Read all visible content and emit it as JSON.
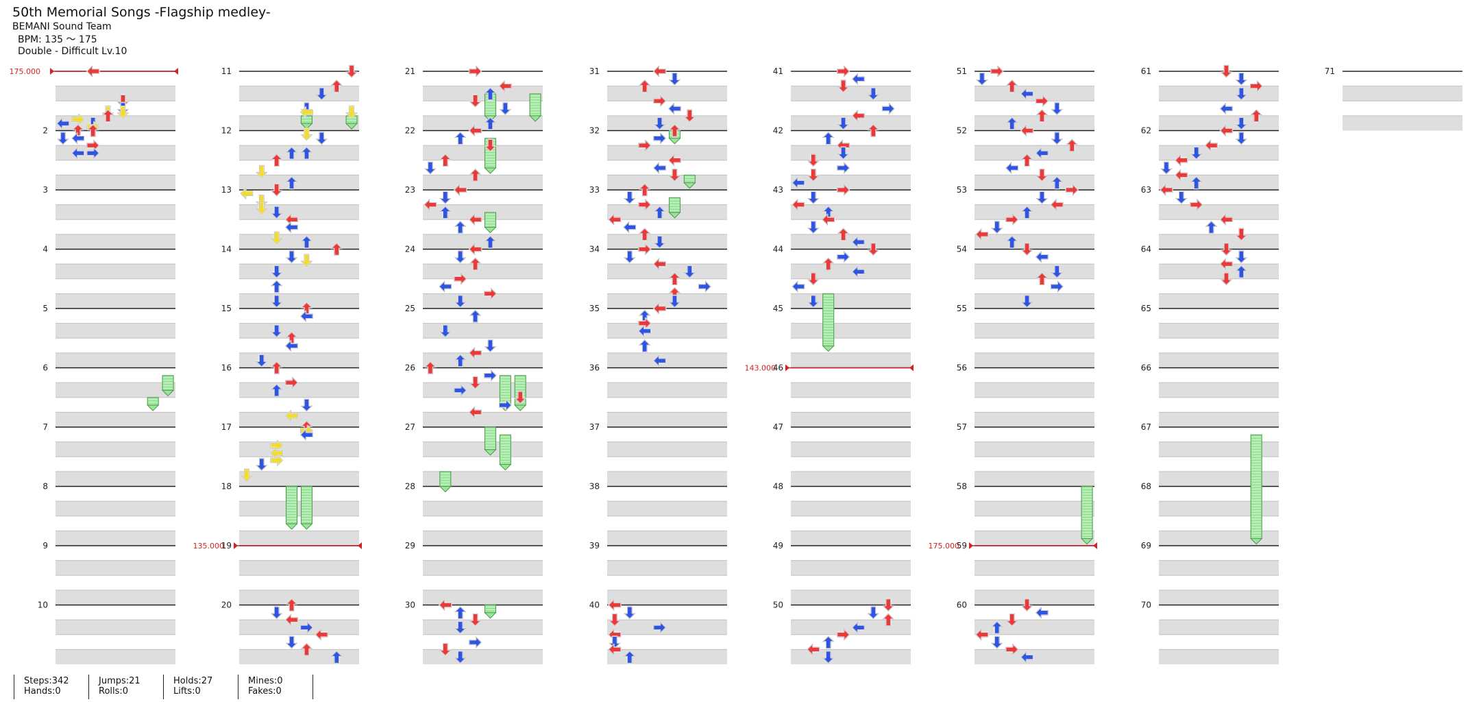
{
  "song": {
    "title": "50th Memorial Songs -Flagship medley-",
    "artist": "BEMANI Sound Team",
    "bpm": "BPM: 135 ～ 175",
    "difficulty": "Double - Difficult Lv.10"
  },
  "measures": [
    "2",
    "3",
    "4",
    "5",
    "6",
    "7",
    "8",
    "9",
    "10",
    "11",
    "12",
    "13",
    "14",
    "15",
    "16",
    "17",
    "18",
    "19",
    "20",
    "21",
    "22",
    "23",
    "24",
    "25",
    "26",
    "27",
    "28",
    "29",
    "30",
    "31",
    "32",
    "33",
    "34",
    "35",
    "36",
    "37",
    "38",
    "39",
    "40",
    "41",
    "42",
    "43",
    "44",
    "45",
    "46",
    "47",
    "48",
    "49",
    "50",
    "51",
    "52",
    "53",
    "54",
    "55",
    "56",
    "57",
    "58",
    "59",
    "60",
    "61",
    "62",
    "63",
    "64",
    "65",
    "66",
    "67",
    "68",
    "69",
    "70",
    "71"
  ],
  "bpm_changes": [
    {
      "measure": 1,
      "label": "175.000"
    },
    {
      "measure": 19,
      "label": "135.000"
    },
    {
      "measure": 46,
      "label": "143.000"
    },
    {
      "measure": 59,
      "label": "175.000"
    }
  ],
  "colors": {
    "quarter": "#e83a3a",
    "eighth": "#2f55e0",
    "sixteenth": "#f2dc32",
    "hold": "#9ae59a",
    "bpm_line": "#d32222",
    "beat_band": "#dedede"
  },
  "notes": [
    [
      1.5,
      4,
      "d"
    ],
    [
      1.63,
      4,
      "d"
    ],
    [
      1.69,
      3,
      "d"
    ],
    [
      1.69,
      4,
      "d"
    ],
    [
      1.75,
      3,
      "u"
    ],
    [
      1.88,
      2,
      "d"
    ],
    [
      1.88,
      0,
      "l"
    ],
    [
      1.94,
      2,
      "r"
    ],
    [
      2.0,
      1,
      "u"
    ],
    [
      2.0,
      2,
      "u"
    ],
    [
      2.13,
      0,
      "d"
    ],
    [
      2.13,
      1,
      "l"
    ],
    [
      2.25,
      2,
      "r"
    ],
    [
      2.38,
      1,
      "l"
    ],
    [
      2.38,
      2,
      "r"
    ],
    [
      1.81,
      1,
      "r"
    ],
    [
      1.0,
      2,
      "l"
    ],
    [
      1.0,
      2,
      "l"
    ],
    [
      11.0,
      7,
      "d"
    ],
    [
      11.25,
      6,
      "u"
    ],
    [
      11.38,
      5,
      "d"
    ],
    [
      11.63,
      4,
      "d"
    ],
    [
      11.69,
      4,
      "l"
    ],
    [
      11.69,
      7,
      "d"
    ],
    [
      12.06,
      4,
      "d"
    ],
    [
      12.13,
      5,
      "d"
    ],
    [
      12.38,
      3,
      "u"
    ],
    [
      12.38,
      4,
      "u"
    ],
    [
      12.5,
      2,
      "u"
    ],
    [
      12.69,
      1,
      "d"
    ],
    [
      12.88,
      3,
      "u"
    ],
    [
      13.0,
      2,
      "d"
    ],
    [
      13.06,
      0,
      "l"
    ],
    [
      13.19,
      1,
      "d"
    ],
    [
      13.31,
      1,
      "d"
    ],
    [
      13.38,
      2,
      "d"
    ],
    [
      13.5,
      3,
      "l"
    ],
    [
      13.63,
      3,
      "l"
    ],
    [
      13.81,
      2,
      "d"
    ],
    [
      13.88,
      4,
      "u"
    ],
    [
      14.0,
      6,
      "u"
    ],
    [
      14.13,
      3,
      "d"
    ],
    [
      14.19,
      4,
      "d"
    ],
    [
      14.38,
      2,
      "d"
    ],
    [
      14.63,
      2,
      "u"
    ],
    [
      14.88,
      2,
      "d"
    ],
    [
      15.0,
      4,
      "u"
    ],
    [
      15.13,
      4,
      "l"
    ],
    [
      15.38,
      2,
      "d"
    ],
    [
      15.5,
      3,
      "u"
    ],
    [
      15.63,
      3,
      "l"
    ],
    [
      15.88,
      1,
      "d"
    ],
    [
      16.0,
      2,
      "u"
    ],
    [
      16.25,
      3,
      "r"
    ],
    [
      16.38,
      2,
      "u"
    ],
    [
      16.63,
      4,
      "d"
    ],
    [
      16.81,
      3,
      "l"
    ],
    [
      17.0,
      4,
      "u"
    ],
    [
      17.06,
      4,
      "r"
    ],
    [
      17.13,
      4,
      "l"
    ],
    [
      17.31,
      2,
      "r"
    ],
    [
      17.44,
      2,
      "l"
    ],
    [
      17.56,
      2,
      "r"
    ],
    [
      17.63,
      1,
      "d"
    ],
    [
      17.81,
      0,
      "d"
    ],
    [
      20.0,
      3,
      "u"
    ],
    [
      20.13,
      2,
      "d"
    ],
    [
      20.25,
      3,
      "l"
    ],
    [
      20.38,
      4,
      "r"
    ],
    [
      20.5,
      5,
      "l"
    ],
    [
      20.63,
      3,
      "d"
    ],
    [
      20.75,
      4,
      "u"
    ],
    [
      20.88,
      6,
      "u"
    ],
    [
      21.0,
      3,
      "r"
    ],
    [
      21.25,
      5,
      "l"
    ],
    [
      21.38,
      4,
      "u"
    ],
    [
      21.5,
      3,
      "d"
    ],
    [
      21.63,
      5,
      "d"
    ],
    [
      21.88,
      4,
      "u"
    ],
    [
      22.0,
      3,
      "l"
    ],
    [
      22.13,
      2,
      "u"
    ],
    [
      22.25,
      4,
      "d"
    ],
    [
      22.5,
      1,
      "u"
    ],
    [
      22.63,
      0,
      "d"
    ],
    [
      22.75,
      3,
      "u"
    ],
    [
      23.0,
      2,
      "l"
    ],
    [
      23.13,
      1,
      "d"
    ],
    [
      23.25,
      0,
      "l"
    ],
    [
      23.38,
      1,
      "u"
    ],
    [
      23.5,
      3,
      "l"
    ],
    [
      23.63,
      2,
      "u"
    ],
    [
      23.88,
      4,
      "u"
    ],
    [
      24.0,
      3,
      "l"
    ],
    [
      24.13,
      2,
      "d"
    ],
    [
      24.25,
      3,
      "u"
    ],
    [
      24.5,
      2,
      "r"
    ],
    [
      24.63,
      1,
      "l"
    ],
    [
      24.75,
      4,
      "r"
    ],
    [
      24.88,
      2,
      "d"
    ],
    [
      25.13,
      3,
      "u"
    ],
    [
      25.38,
      1,
      "d"
    ],
    [
      25.63,
      4,
      "d"
    ],
    [
      25.75,
      3,
      "l"
    ],
    [
      25.88,
      2,
      "u"
    ],
    [
      26.0,
      0,
      "u"
    ],
    [
      26.13,
      4,
      "r"
    ],
    [
      26.25,
      3,
      "d"
    ],
    [
      26.38,
      2,
      "r"
    ],
    [
      26.5,
      6,
      "d"
    ],
    [
      26.63,
      5,
      "r"
    ],
    [
      26.75,
      3,
      "l"
    ],
    [
      30.0,
      1,
      "l"
    ],
    [
      30.13,
      2,
      "u"
    ],
    [
      30.25,
      3,
      "d"
    ],
    [
      30.38,
      2,
      "d"
    ],
    [
      30.63,
      3,
      "r"
    ],
    [
      30.75,
      1,
      "d"
    ],
    [
      30.88,
      2,
      "d"
    ],
    [
      31.0,
      3,
      "l"
    ],
    [
      31.13,
      4,
      "d"
    ],
    [
      31.25,
      2,
      "u"
    ],
    [
      31.5,
      3,
      "r"
    ],
    [
      31.63,
      4,
      "l"
    ],
    [
      31.75,
      5,
      "d"
    ],
    [
      31.88,
      3,
      "d"
    ],
    [
      32.0,
      4,
      "u"
    ],
    [
      32.13,
      3,
      "r"
    ],
    [
      32.25,
      2,
      "r"
    ],
    [
      32.5,
      4,
      "l"
    ],
    [
      32.63,
      3,
      "l"
    ],
    [
      32.75,
      4,
      "d"
    ],
    [
      33.0,
      2,
      "u"
    ],
    [
      33.13,
      1,
      "d"
    ],
    [
      33.25,
      2,
      "r"
    ],
    [
      33.38,
      3,
      "u"
    ],
    [
      33.5,
      0,
      "l"
    ],
    [
      33.63,
      1,
      "l"
    ],
    [
      33.75,
      2,
      "u"
    ],
    [
      33.88,
      3,
      "d"
    ],
    [
      34.0,
      2,
      "r"
    ],
    [
      34.13,
      1,
      "d"
    ],
    [
      34.25,
      3,
      "l"
    ],
    [
      34.38,
      5,
      "d"
    ],
    [
      34.5,
      4,
      "u"
    ],
    [
      34.63,
      6,
      "r"
    ],
    [
      34.75,
      4,
      "u"
    ],
    [
      34.88,
      4,
      "d"
    ],
    [
      35.0,
      3,
      "l"
    ],
    [
      35.13,
      2,
      "u"
    ],
    [
      35.25,
      2,
      "r"
    ],
    [
      35.38,
      2,
      "l"
    ],
    [
      35.63,
      2,
      "u"
    ],
    [
      35.88,
      3,
      "l"
    ],
    [
      40.0,
      0,
      "l"
    ],
    [
      40.13,
      1,
      "d"
    ],
    [
      40.25,
      0,
      "d"
    ],
    [
      40.38,
      3,
      "r"
    ],
    [
      40.5,
      0,
      "l"
    ],
    [
      40.63,
      0,
      "d"
    ],
    [
      40.75,
      0,
      "l"
    ],
    [
      40.88,
      1,
      "u"
    ],
    [
      41.0,
      3,
      "r"
    ],
    [
      41.13,
      4,
      "l"
    ],
    [
      41.25,
      3,
      "d"
    ],
    [
      41.38,
      5,
      "d"
    ],
    [
      41.63,
      6,
      "r"
    ],
    [
      41.75,
      4,
      "l"
    ],
    [
      41.88,
      3,
      "d"
    ],
    [
      42.0,
      5,
      "u"
    ],
    [
      42.13,
      2,
      "u"
    ],
    [
      42.25,
      3,
      "l"
    ],
    [
      42.38,
      3,
      "d"
    ],
    [
      42.5,
      1,
      "d"
    ],
    [
      42.63,
      3,
      "r"
    ],
    [
      42.75,
      1,
      "d"
    ],
    [
      42.88,
      0,
      "l"
    ],
    [
      43.0,
      3,
      "r"
    ],
    [
      43.13,
      1,
      "d"
    ],
    [
      43.25,
      0,
      "l"
    ],
    [
      43.38,
      2,
      "u"
    ],
    [
      43.5,
      2,
      "l"
    ],
    [
      43.63,
      1,
      "d"
    ],
    [
      43.75,
      3,
      "u"
    ],
    [
      43.88,
      4,
      "l"
    ],
    [
      44.0,
      5,
      "d"
    ],
    [
      44.13,
      3,
      "r"
    ],
    [
      44.25,
      2,
      "u"
    ],
    [
      44.38,
      4,
      "l"
    ],
    [
      44.5,
      1,
      "d"
    ],
    [
      44.63,
      0,
      "l"
    ],
    [
      44.88,
      1,
      "d"
    ],
    [
      50.0,
      6,
      "d"
    ],
    [
      50.13,
      5,
      "d"
    ],
    [
      50.25,
      6,
      "u"
    ],
    [
      50.38,
      4,
      "l"
    ],
    [
      50.5,
      3,
      "r"
    ],
    [
      50.63,
      2,
      "u"
    ],
    [
      50.75,
      1,
      "l"
    ],
    [
      50.88,
      2,
      "d"
    ],
    [
      51.0,
      1,
      "r"
    ],
    [
      51.13,
      0,
      "d"
    ],
    [
      51.25,
      2,
      "u"
    ],
    [
      51.38,
      3,
      "l"
    ],
    [
      51.5,
      4,
      "r"
    ],
    [
      51.63,
      5,
      "d"
    ],
    [
      51.75,
      4,
      "u"
    ],
    [
      51.88,
      2,
      "u"
    ],
    [
      52.0,
      3,
      "l"
    ],
    [
      52.13,
      5,
      "d"
    ],
    [
      52.25,
      6,
      "u"
    ],
    [
      52.38,
      4,
      "l"
    ],
    [
      52.5,
      3,
      "u"
    ],
    [
      52.63,
      2,
      "l"
    ],
    [
      52.75,
      4,
      "d"
    ],
    [
      52.88,
      5,
      "u"
    ],
    [
      53.0,
      6,
      "r"
    ],
    [
      53.13,
      4,
      "d"
    ],
    [
      53.25,
      5,
      "l"
    ],
    [
      53.38,
      3,
      "u"
    ],
    [
      53.5,
      2,
      "r"
    ],
    [
      53.63,
      1,
      "d"
    ],
    [
      53.75,
      0,
      "l"
    ],
    [
      53.88,
      2,
      "u"
    ],
    [
      54.0,
      3,
      "d"
    ],
    [
      54.13,
      4,
      "l"
    ],
    [
      54.38,
      5,
      "d"
    ],
    [
      54.5,
      4,
      "u"
    ],
    [
      54.63,
      5,
      "r"
    ],
    [
      54.88,
      3,
      "d"
    ],
    [
      60.0,
      3,
      "d"
    ],
    [
      60.13,
      4,
      "l"
    ],
    [
      60.25,
      2,
      "d"
    ],
    [
      60.38,
      1,
      "u"
    ],
    [
      60.5,
      0,
      "l"
    ],
    [
      60.63,
      1,
      "d"
    ],
    [
      60.75,
      2,
      "r"
    ],
    [
      60.88,
      3,
      "l"
    ],
    [
      61.0,
      4,
      "d"
    ],
    [
      61.13,
      5,
      "d"
    ],
    [
      61.25,
      6,
      "r"
    ],
    [
      61.38,
      5,
      "d"
    ],
    [
      61.63,
      4,
      "l"
    ],
    [
      61.75,
      6,
      "u"
    ],
    [
      61.88,
      5,
      "d"
    ],
    [
      62.0,
      4,
      "l"
    ],
    [
      62.13,
      5,
      "d"
    ],
    [
      62.25,
      3,
      "l"
    ],
    [
      62.38,
      2,
      "d"
    ],
    [
      62.5,
      1,
      "l"
    ],
    [
      62.63,
      0,
      "d"
    ],
    [
      62.75,
      1,
      "l"
    ],
    [
      62.88,
      2,
      "u"
    ],
    [
      63.0,
      0,
      "l"
    ],
    [
      63.13,
      1,
      "d"
    ],
    [
      63.25,
      2,
      "r"
    ],
    [
      63.5,
      4,
      "l"
    ],
    [
      63.63,
      3,
      "u"
    ],
    [
      63.75,
      5,
      "d"
    ],
    [
      64.0,
      4,
      "d"
    ],
    [
      64.13,
      5,
      "d"
    ],
    [
      64.25,
      4,
      "l"
    ],
    [
      64.38,
      5,
      "u"
    ],
    [
      64.5,
      4,
      "d"
    ]
  ],
  "holds": [
    [
      11.75,
      11.88,
      4
    ],
    [
      11.75,
      11.88,
      7
    ],
    [
      18.0,
      18.63,
      3
    ],
    [
      18.0,
      18.63,
      4
    ],
    [
      21.38,
      21.75,
      4
    ],
    [
      21.38,
      21.75,
      7
    ],
    [
      22.13,
      22.63,
      4
    ],
    [
      23.38,
      23.63,
      4
    ],
    [
      26.13,
      26.63,
      5
    ],
    [
      26.13,
      26.63,
      6
    ],
    [
      27.0,
      27.38,
      4
    ],
    [
      27.13,
      27.63,
      5
    ],
    [
      30.0,
      30.13,
      4
    ],
    [
      32.0,
      32.13,
      4
    ],
    [
      32.75,
      32.88,
      5
    ],
    [
      33.13,
      33.38,
      4
    ],
    [
      44.75,
      45.63,
      2
    ],
    [
      58.0,
      58.88,
      7
    ],
    [
      67.13,
      68.88,
      6
    ],
    [
      6.13,
      6.38,
      7
    ],
    [
      6.5,
      6.63,
      6
    ],
    [
      27.75,
      28.0,
      1
    ]
  ]
}
